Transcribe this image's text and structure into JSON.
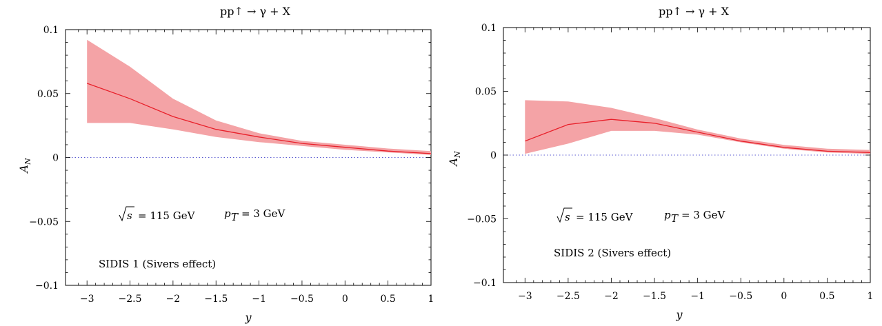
{
  "chart_data": [
    {
      "type": "line",
      "title": "pp↑ → γ + X",
      "xlabel": "y",
      "ylabel": "A_N",
      "xlim": [
        -3.25,
        1
      ],
      "ylim": [
        -0.1,
        0.1
      ],
      "xticks": [
        -3,
        -2.5,
        -2,
        -1.5,
        -1,
        -0.5,
        0,
        0.5,
        1
      ],
      "xtick_labels": [
        "−3",
        "−2.5",
        "−2",
        "−1.5",
        "−1",
        "−0.5",
        "0",
        "0.5",
        "1"
      ],
      "yticks": [
        -0.1,
        -0.05,
        0,
        0.05,
        0.1
      ],
      "ytick_labels": [
        "−0.1",
        "−0.05",
        "0",
        "0.05",
        "0.1"
      ],
      "reference_line": {
        "y": 0,
        "style": "dotted",
        "color": "#5a5ad0"
      },
      "series": [
        {
          "x": [
            -3,
            -2.5,
            -2,
            -1.5,
            -1,
            -0.5,
            0,
            0.5,
            1
          ],
          "values": [
            0.058,
            0.046,
            0.032,
            0.022,
            0.016,
            0.011,
            0.008,
            0.005,
            0.003
          ],
          "upper": [
            0.092,
            0.071,
            0.046,
            0.029,
            0.019,
            0.013,
            0.01,
            0.007,
            0.005
          ],
          "lower": [
            0.027,
            0.027,
            0.022,
            0.016,
            0.012,
            0.009,
            0.006,
            0.004,
            0.002
          ],
          "color": "#e8202a",
          "band_color": "#f4a3a6"
        }
      ],
      "annotations": {
        "sqrt_s": "s",
        "energy": "= 115 GeV",
        "pt_symbol": "p",
        "pt_sub": "T",
        "pt_value": "= 3 GeV",
        "label": "SIDIS 1 (Sivers effect)"
      }
    },
    {
      "type": "line",
      "title": "pp↑ → γ + X",
      "xlabel": "y",
      "ylabel": "A_N",
      "xlim": [
        -3.25,
        1
      ],
      "ylim": [
        -0.1,
        0.1
      ],
      "xticks": [
        -3,
        -2.5,
        -2,
        -1.5,
        -1,
        -0.5,
        0,
        0.5,
        1
      ],
      "xtick_labels": [
        "−3",
        "−2.5",
        "−2",
        "−1.5",
        "−1",
        "−0.5",
        "0",
        "0.5",
        "1"
      ],
      "yticks": [
        -0.1,
        -0.05,
        0,
        0.05,
        0.1
      ],
      "ytick_labels": [
        "−0.1",
        "−0.05",
        "0",
        "0.05",
        "0.1"
      ],
      "reference_line": {
        "y": 0,
        "style": "dotted",
        "color": "#5a5ad0"
      },
      "series": [
        {
          "x": [
            -3,
            -2.5,
            -2,
            -1.5,
            -1,
            -0.5,
            0,
            0.5,
            1
          ],
          "values": [
            0.011,
            0.024,
            0.028,
            0.025,
            0.018,
            0.011,
            0.006,
            0.003,
            0.002
          ],
          "upper": [
            0.043,
            0.042,
            0.037,
            0.029,
            0.02,
            0.013,
            0.008,
            0.005,
            0.004
          ],
          "lower": [
            0.001,
            0.009,
            0.019,
            0.019,
            0.016,
            0.01,
            0.005,
            0.002,
            0.001
          ],
          "color": "#e8202a",
          "band_color": "#f4a3a6"
        }
      ],
      "annotations": {
        "sqrt_s": "s",
        "energy": "= 115 GeV",
        "pt_symbol": "p",
        "pt_sub": "T",
        "pt_value": "= 3 GeV",
        "label": "SIDIS 2 (Sivers effect)"
      }
    }
  ]
}
